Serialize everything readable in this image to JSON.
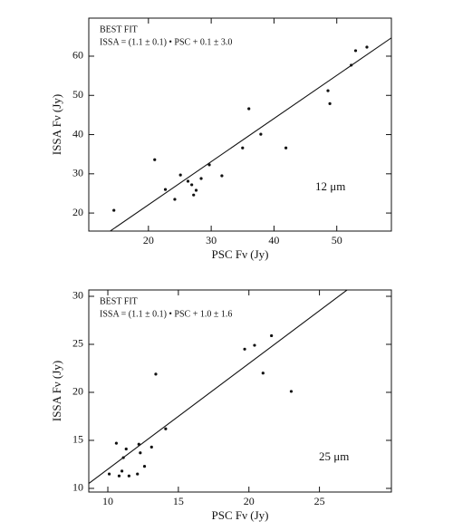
{
  "chart_data": [
    {
      "type": "scatter",
      "annotation_title": "BEST FIT",
      "annotation_fit": "ISSA = (1.1 ± 0.1) • PSC + 0.1 ± 3.0",
      "annotation_band": "12 μm",
      "x_label": "PSC Fν (Jy)",
      "y_label": "ISSA Fν (Jy)",
      "xlim": [
        10.5,
        58.7
      ],
      "ylim": [
        15.4,
        69.7
      ],
      "xticks": [
        20,
        30,
        40,
        50
      ],
      "yticks": [
        20,
        30,
        40,
        50,
        60
      ],
      "fit_line": {
        "slope": 1.1,
        "intercept": 0.1
      },
      "series": [
        {
          "color": "#111111",
          "x": [
            14.5,
            21.0,
            22.7,
            24.2,
            25.1,
            26.3,
            26.9,
            27.2,
            27.6,
            28.4,
            29.7,
            31.7,
            35.0,
            36.0,
            37.9,
            41.9,
            48.6,
            48.9,
            52.3,
            53.0,
            54.8
          ],
          "values": [
            20.7,
            33.6,
            26.0,
            23.5,
            29.7,
            28.1,
            27.2,
            24.6,
            25.8,
            28.8,
            32.3,
            29.5,
            36.6,
            46.6,
            40.1,
            36.6,
            51.2,
            47.9,
            57.7,
            61.4,
            62.3
          ]
        }
      ]
    },
    {
      "type": "scatter",
      "annotation_title": "BEST FIT",
      "annotation_fit": "ISSA = (1.1 ± 0.1) • PSC + 1.0 ± 1.6",
      "annotation_band": "25 μm",
      "x_label": "PSC Fν (Jy)",
      "y_label": "ISSA Fν (Jy)",
      "xlim": [
        8.65,
        30.1
      ],
      "ylim": [
        9.62,
        30.66
      ],
      "xticks": [
        10,
        15,
        20,
        25
      ],
      "yticks": [
        10,
        15,
        20,
        25,
        30
      ],
      "fit_line": {
        "slope": 1.1,
        "intercept": 1.0
      },
      "series": [
        {
          "color": "#111111",
          "x": [
            10.1,
            10.6,
            10.8,
            11.0,
            11.1,
            11.3,
            11.5,
            12.1,
            12.2,
            12.3,
            12.6,
            13.1,
            13.4,
            14.1,
            19.7,
            20.4,
            21.0,
            21.6,
            23.0
          ],
          "values": [
            11.5,
            14.7,
            11.3,
            11.8,
            13.2,
            14.1,
            11.3,
            11.5,
            14.6,
            13.7,
            12.3,
            14.3,
            21.9,
            16.2,
            24.5,
            24.9,
            22.0,
            25.9,
            20.1
          ]
        }
      ]
    }
  ]
}
